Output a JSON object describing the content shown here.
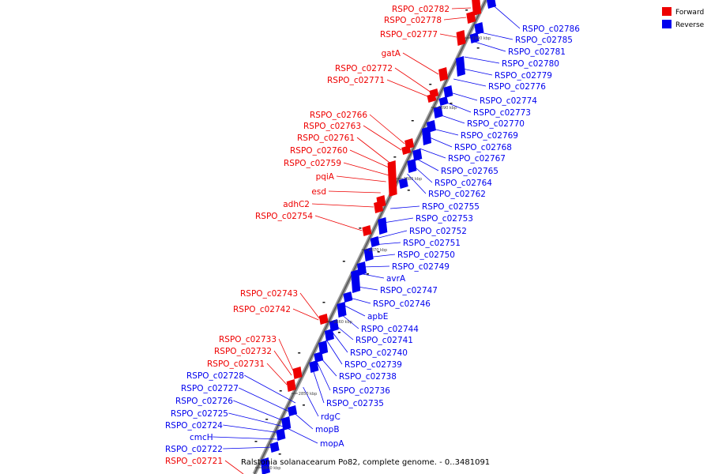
{
  "caption": "Ralstonia solanacearum Po82, complete genome. - 0..3481091",
  "legend": [
    {
      "label": "Forward",
      "color": "#ee0000"
    },
    {
      "label": "Reverse",
      "color": "#0000ee"
    }
  ],
  "ticks": [
    "2900 kbp",
    "2890 kbp",
    "2880 kbp",
    "2870 kbp",
    "2860 kbp",
    "2850 kbp",
    "2840 kbp"
  ],
  "forward_labels": [
    "RSPO_c02782",
    "RSPO_c02778",
    "RSPO_c02777",
    "gatA",
    "RSPO_c02772",
    "RSPO_c02771",
    "RSPO_c02766",
    "RSPO_c02763",
    "RSPO_c02761",
    "RSPO_c02760",
    "RSPO_c02759",
    "pqiA",
    "esd",
    "adhC2",
    "RSPO_c02754",
    "RSPO_c02743",
    "RSPO_c02742",
    "RSPO_c02733",
    "RSPO_c02732",
    "RSPO_c02731",
    "RSPO_c02721"
  ],
  "reverse_labels": [
    "RSPO_c02786",
    "RSPO_c02785",
    "RSPO_c02781",
    "RSPO_c02780",
    "RSPO_c02779",
    "RSPO_c02776",
    "RSPO_c02774",
    "RSPO_c02773",
    "RSPO_c02770",
    "RSPO_c02769",
    "RSPO_c02768",
    "RSPO_c02767",
    "RSPO_c02765",
    "RSPO_c02764",
    "RSPO_c02762",
    "RSPO_c02755",
    "RSPO_c02753",
    "RSPO_c02752",
    "RSPO_c02751",
    "RSPO_c02750",
    "RSPO_c02749",
    "avrA",
    "RSPO_c02747",
    "RSPO_c02746",
    "apbE",
    "RSPO_c02744",
    "RSPO_c02741",
    "RSPO_c02740",
    "RSPO_c02739",
    "RSPO_c02738",
    "RSPO_c02736",
    "RSPO_c02735",
    "rdgC",
    "mopB",
    "mopA",
    "RSPO_c02728",
    "RSPO_c02727",
    "RSPO_c02726",
    "RSPO_c02725",
    "RSPO_c02724",
    "cmcH",
    "RSPO_c02722"
  ]
}
